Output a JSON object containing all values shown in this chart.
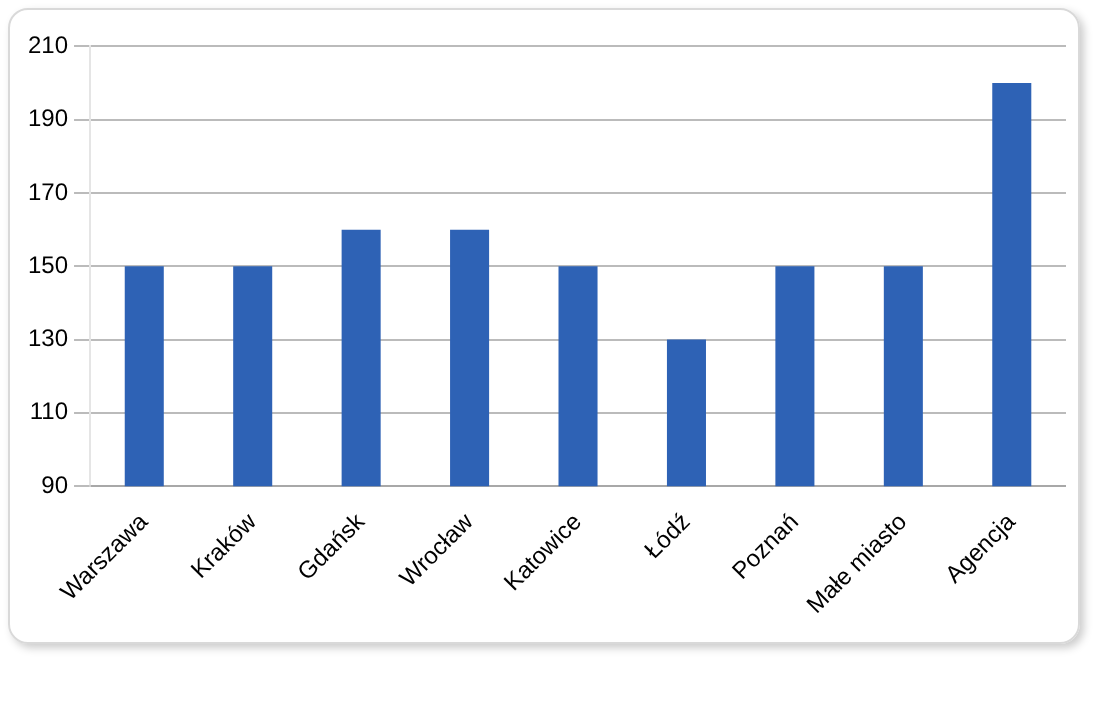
{
  "chart_data": {
    "type": "bar",
    "categories": [
      "Warszawa",
      "Kraków",
      "Gdańsk",
      "Wrocław",
      "Katowice",
      "Łódź",
      "Poznań",
      "Małe miasto",
      "Agencja"
    ],
    "values": [
      150,
      150,
      160,
      160,
      150,
      130,
      150,
      150,
      200
    ],
    "color": "#2e62b5",
    "ylim": [
      90,
      210
    ],
    "yticks": [
      90,
      110,
      130,
      150,
      170,
      190,
      210
    ],
    "grid": "y"
  }
}
